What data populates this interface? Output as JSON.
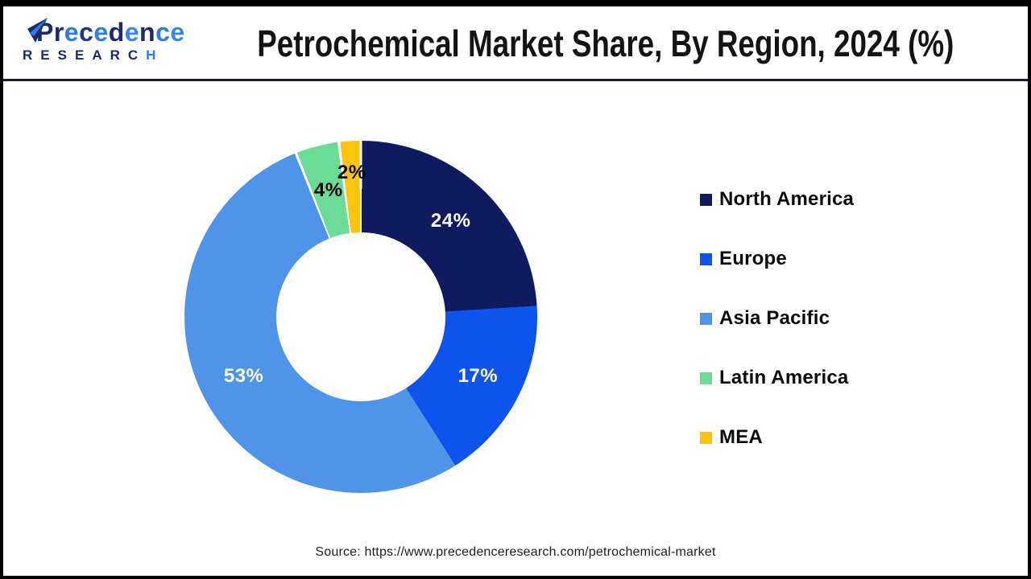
{
  "header": {
    "logo": {
      "line1": "Precedence",
      "line2": "RESEARCH",
      "line1_letter_colors": [
        "#1b2a70",
        "#1b2a70",
        "#2f7de2",
        "#24377e",
        "#2f7de2",
        "#1b2a70",
        "#3b86ea",
        "#1b2a70",
        "#2f7de2",
        "#3b86ea"
      ],
      "line2_letter_colors": [
        "#1b2a70",
        "#1b2a70",
        "#1b2a70",
        "#1b2a70",
        "#1b2a70",
        "#1b2a70",
        "#1b2a70",
        "#2f7de2"
      ],
      "brand_navy": "#1b2a70",
      "brand_blue": "#2f7de2"
    },
    "title": "Petrochemical Market Share, By Region, 2024 (%)"
  },
  "chart_data": {
    "type": "pie",
    "subtype": "donut",
    "title": "Petrochemical Market Share, By Region, 2024 (%)",
    "categories": [
      "North America",
      "Europe",
      "Asia Pacific",
      "Latin America",
      "MEA"
    ],
    "values": [
      24,
      17,
      53,
      4,
      2
    ],
    "unit": "%",
    "slice_labels": [
      "24%",
      "17%",
      "53%",
      "4%",
      "2%"
    ],
    "colors": [
      "#101a5e",
      "#0f53ee",
      "#4f94e8",
      "#6cdb97",
      "#fdc40d"
    ],
    "slice_label_colors": [
      "#ffffff",
      "#ffffff",
      "#ffffff",
      "#000000",
      "#000000"
    ],
    "start_angle_deg": 0,
    "direction": "clockwise",
    "inner_radius_ratio": 0.48,
    "legend_position": "right"
  },
  "legend": {
    "items": [
      {
        "label": "North America",
        "color": "#101a5e"
      },
      {
        "label": "Europe",
        "color": "#0f53ee"
      },
      {
        "label": "Asia Pacific",
        "color": "#4f94e8"
      },
      {
        "label": "Latin America",
        "color": "#6cdb97"
      },
      {
        "label": "MEA",
        "color": "#fdc40d"
      }
    ]
  },
  "footer": {
    "source": "Source: https://www.precedenceresearch.com/petrochemical-market"
  }
}
